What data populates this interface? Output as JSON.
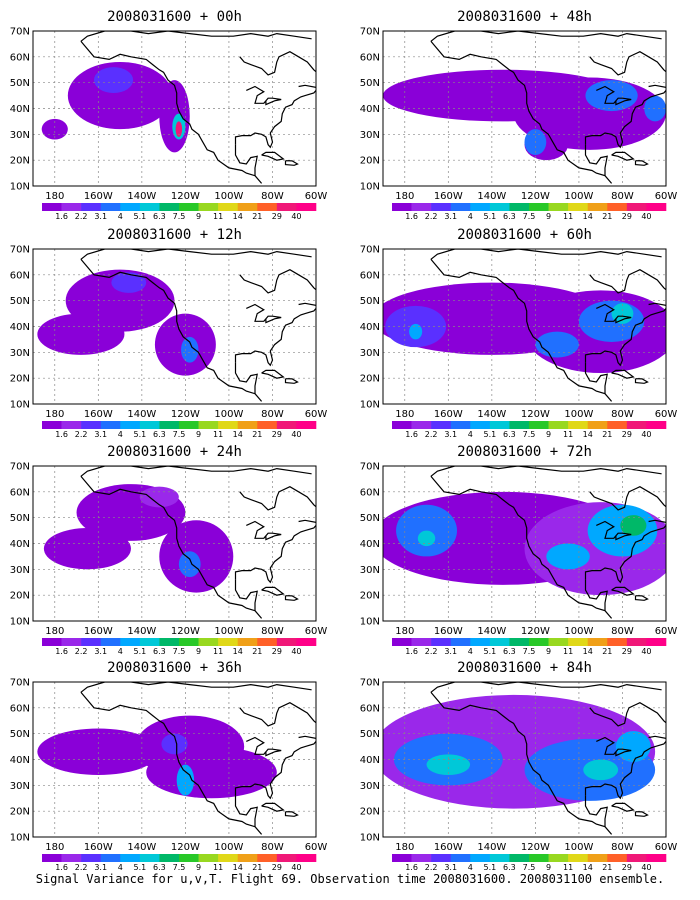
{
  "figure": {
    "caption": "Signal Variance for u,v,T. Flight 69. Observation time 2008031600. 2008031100 ensemble."
  },
  "colorbar": {
    "labels": [
      "1.6",
      "2.2",
      "3.1",
      "4",
      "5.1",
      "6.3",
      "7.5",
      "9",
      "11",
      "14",
      "21",
      "29",
      "40"
    ],
    "colors": [
      "#8a00d8",
      "#9a28ea",
      "#5a30ff",
      "#2070ff",
      "#00a8ff",
      "#00c8d8",
      "#00b868",
      "#28c828",
      "#98d820",
      "#e0d818",
      "#f0a018",
      "#ff6028",
      "#f01878",
      "#ff0088"
    ]
  },
  "map": {
    "lat_ticks": [
      "10N",
      "20N",
      "30N",
      "40N",
      "50N",
      "60N",
      "70N"
    ],
    "lon_ticks": [
      "180",
      "160W",
      "140W",
      "120W",
      "100W",
      "80W",
      "60W"
    ],
    "lat_range": [
      10,
      70
    ],
    "lon_range": [
      -190,
      -60
    ]
  },
  "panels": [
    {
      "title": "2008031600 + 00h",
      "blobs": [
        {
          "lon": -150,
          "lat": 45,
          "rx": 24,
          "ry": 13,
          "level": 0
        },
        {
          "lon": -180,
          "lat": 32,
          "rx": 6,
          "ry": 4,
          "level": 0
        },
        {
          "lon": -125,
          "lat": 37,
          "rx": 7,
          "ry": 14,
          "level": 0
        },
        {
          "lon": -153,
          "lat": 51,
          "rx": 9,
          "ry": 5,
          "level": 2
        },
        {
          "lon": -123,
          "lat": 33,
          "rx": 3,
          "ry": 5,
          "level": 5
        },
        {
          "lon": -123,
          "lat": 32,
          "rx": 1.5,
          "ry": 3,
          "level": 12
        }
      ]
    },
    {
      "title": "2008031600 + 12h",
      "blobs": [
        {
          "lon": -150,
          "lat": 50,
          "rx": 25,
          "ry": 12,
          "level": 0
        },
        {
          "lon": -168,
          "lat": 37,
          "rx": 20,
          "ry": 8,
          "level": 0
        },
        {
          "lon": -120,
          "lat": 33,
          "rx": 14,
          "ry": 12,
          "level": 0
        },
        {
          "lon": -146,
          "lat": 57,
          "rx": 8,
          "ry": 4,
          "level": 2
        },
        {
          "lon": -118,
          "lat": 31,
          "rx": 4,
          "ry": 5,
          "level": 3
        }
      ]
    },
    {
      "title": "2008031600 + 24h",
      "blobs": [
        {
          "lon": -145,
          "lat": 52,
          "rx": 25,
          "ry": 11,
          "level": 0
        },
        {
          "lon": -165,
          "lat": 38,
          "rx": 20,
          "ry": 8,
          "level": 0
        },
        {
          "lon": -115,
          "lat": 35,
          "rx": 17,
          "ry": 14,
          "level": 0
        },
        {
          "lon": -132,
          "lat": 58,
          "rx": 9,
          "ry": 4,
          "level": 1
        },
        {
          "lon": -118,
          "lat": 32,
          "rx": 5,
          "ry": 5,
          "level": 3
        }
      ]
    },
    {
      "title": "2008031600 + 36h",
      "blobs": [
        {
          "lon": -160,
          "lat": 43,
          "rx": 28,
          "ry": 9,
          "level": 0
        },
        {
          "lon": -118,
          "lat": 45,
          "rx": 25,
          "ry": 12,
          "level": 0
        },
        {
          "lon": -108,
          "lat": 35,
          "rx": 30,
          "ry": 10,
          "level": 0
        },
        {
          "lon": -120,
          "lat": 32,
          "rx": 4,
          "ry": 6,
          "level": 4
        },
        {
          "lon": -125,
          "lat": 46,
          "rx": 6,
          "ry": 4,
          "level": 2
        }
      ]
    },
    {
      "title": "2008031600 + 48h",
      "blobs": [
        {
          "lon": -135,
          "lat": 45,
          "rx": 55,
          "ry": 10,
          "level": 0
        },
        {
          "lon": -95,
          "lat": 38,
          "rx": 35,
          "ry": 14,
          "level": 0
        },
        {
          "lon": -115,
          "lat": 26,
          "rx": 10,
          "ry": 6,
          "level": 0
        },
        {
          "lon": -120,
          "lat": 27,
          "rx": 5,
          "ry": 5,
          "level": 3
        },
        {
          "lon": -85,
          "lat": 45,
          "rx": 12,
          "ry": 6,
          "level": 3
        },
        {
          "lon": -65,
          "lat": 40,
          "rx": 5,
          "ry": 5,
          "level": 3
        }
      ]
    },
    {
      "title": "2008031600 + 60h",
      "blobs": [
        {
          "lon": -140,
          "lat": 43,
          "rx": 55,
          "ry": 14,
          "level": 0
        },
        {
          "lon": -90,
          "lat": 38,
          "rx": 35,
          "ry": 16,
          "level": 0
        },
        {
          "lon": -175,
          "lat": 40,
          "rx": 14,
          "ry": 8,
          "level": 2
        },
        {
          "lon": -175,
          "lat": 38,
          "rx": 3,
          "ry": 3,
          "level": 4
        },
        {
          "lon": -85,
          "lat": 42,
          "rx": 15,
          "ry": 8,
          "level": 3
        },
        {
          "lon": -80,
          "lat": 45,
          "rx": 5,
          "ry": 4,
          "level": 5
        },
        {
          "lon": -110,
          "lat": 33,
          "rx": 10,
          "ry": 5,
          "level": 3
        }
      ]
    },
    {
      "title": "2008031600 + 72h",
      "blobs": [
        {
          "lon": -135,
          "lat": 42,
          "rx": 60,
          "ry": 18,
          "level": 0
        },
        {
          "lon": -90,
          "lat": 38,
          "rx": 35,
          "ry": 18,
          "level": 1
        },
        {
          "lon": -170,
          "lat": 45,
          "rx": 14,
          "ry": 10,
          "level": 3
        },
        {
          "lon": -170,
          "lat": 42,
          "rx": 4,
          "ry": 3,
          "level": 5
        },
        {
          "lon": -80,
          "lat": 45,
          "rx": 16,
          "ry": 10,
          "level": 4
        },
        {
          "lon": -75,
          "lat": 47,
          "rx": 6,
          "ry": 4,
          "level": 6
        },
        {
          "lon": -105,
          "lat": 35,
          "rx": 10,
          "ry": 5,
          "level": 4
        }
      ]
    },
    {
      "title": "2008031600 + 84h",
      "blobs": [
        {
          "lon": -130,
          "lat": 43,
          "rx": 65,
          "ry": 22,
          "level": 1
        },
        {
          "lon": -160,
          "lat": 40,
          "rx": 25,
          "ry": 10,
          "level": 3
        },
        {
          "lon": -160,
          "lat": 38,
          "rx": 10,
          "ry": 4,
          "level": 5
        },
        {
          "lon": -95,
          "lat": 36,
          "rx": 30,
          "ry": 12,
          "level": 3
        },
        {
          "lon": -90,
          "lat": 36,
          "rx": 8,
          "ry": 4,
          "level": 5
        },
        {
          "lon": -75,
          "lat": 45,
          "rx": 8,
          "ry": 6,
          "level": 4
        }
      ]
    }
  ]
}
